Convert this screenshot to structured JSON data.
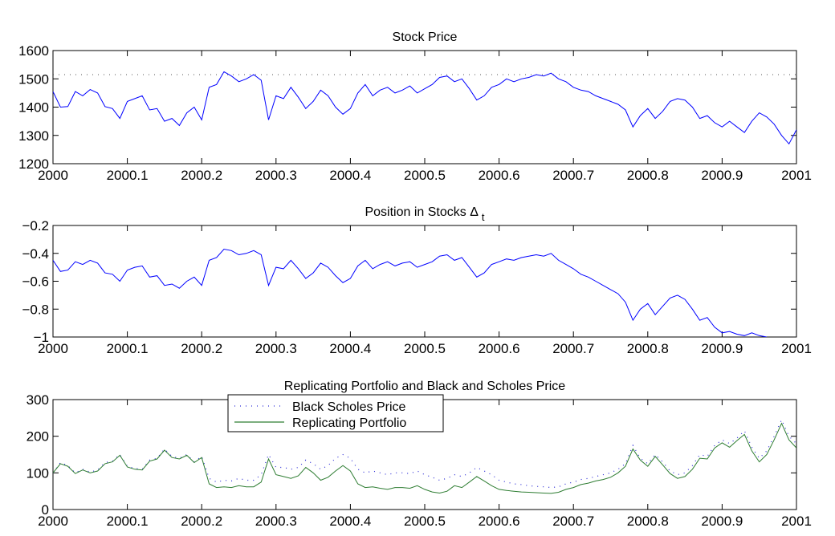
{
  "colors": {
    "blue": "#0000ff",
    "green": "#2e7d32",
    "dotted": "#2b2bd6"
  },
  "chart_data": [
    {
      "type": "line",
      "title": "Stock Price",
      "xlim": [
        2000,
        2001
      ],
      "ylim": [
        1200,
        1600
      ],
      "xticks": [
        2000,
        2000.1,
        2000.2,
        2000.3,
        2000.4,
        2000.5,
        2000.6,
        2000.7,
        2000.8,
        2000.9,
        2001
      ],
      "yticks": [
        1200,
        1300,
        1400,
        1500,
        1600
      ],
      "reference_line": {
        "y": 1515,
        "style": "dotted"
      },
      "series": [
        {
          "x": [
            2000,
            2000.01,
            2000.02,
            2000.03,
            2000.04,
            2000.05,
            2000.06,
            2000.07,
            2000.08,
            2000.09,
            2000.1,
            2000.11,
            2000.12,
            2000.13,
            2000.14,
            2000.15,
            2000.16,
            2000.17,
            2000.18,
            2000.19,
            2000.2,
            2000.21,
            2000.22,
            2000.23,
            2000.24,
            2000.25,
            2000.26,
            2000.27,
            2000.28,
            2000.29,
            2000.3,
            2000.31,
            2000.32,
            2000.33,
            2000.34,
            2000.35,
            2000.36,
            2000.37,
            2000.38,
            2000.39,
            2000.4,
            2000.41,
            2000.42,
            2000.43,
            2000.44,
            2000.45,
            2000.46,
            2000.47,
            2000.48,
            2000.49,
            2000.5,
            2000.51,
            2000.52,
            2000.53,
            2000.54,
            2000.55,
            2000.56,
            2000.57,
            2000.58,
            2000.59,
            2000.6,
            2000.61,
            2000.62,
            2000.63,
            2000.64,
            2000.65,
            2000.66,
            2000.67,
            2000.68,
            2000.69,
            2000.7,
            2000.71,
            2000.72,
            2000.73,
            2000.74,
            2000.75,
            2000.76,
            2000.77,
            2000.78,
            2000.79,
            2000.8,
            2000.81,
            2000.82,
            2000.83,
            2000.84,
            2000.85,
            2000.86,
            2000.87,
            2000.88,
            2000.89,
            2000.9,
            2000.91,
            2000.92,
            2000.93,
            2000.94,
            2000.95,
            2000.96,
            2000.97,
            2000.98,
            2000.99,
            2001
          ],
          "y": [
            1455,
            1400,
            1402,
            1455,
            1440,
            1462,
            1450,
            1402,
            1395,
            1360,
            1420,
            1430,
            1440,
            1390,
            1395,
            1350,
            1360,
            1335,
            1380,
            1400,
            1355,
            1470,
            1480,
            1525,
            1510,
            1490,
            1500,
            1515,
            1495,
            1355,
            1440,
            1430,
            1470,
            1435,
            1395,
            1420,
            1460,
            1440,
            1400,
            1375,
            1395,
            1450,
            1480,
            1440,
            1460,
            1470,
            1450,
            1460,
            1475,
            1450,
            1465,
            1480,
            1505,
            1510,
            1490,
            1500,
            1465,
            1425,
            1440,
            1470,
            1480,
            1500,
            1490,
            1500,
            1505,
            1515,
            1510,
            1520,
            1500,
            1490,
            1470,
            1460,
            1455,
            1440,
            1430,
            1420,
            1410,
            1390,
            1330,
            1370,
            1395,
            1360,
            1385,
            1420,
            1430,
            1425,
            1400,
            1360,
            1370,
            1345,
            1330,
            1350,
            1330,
            1310,
            1350,
            1380,
            1365,
            1340,
            1300,
            1270,
            1320
          ]
        }
      ]
    },
    {
      "type": "line",
      "title": "Position in Stocks Δ",
      "title_subscript": "t",
      "xlim": [
        2000,
        2001
      ],
      "ylim": [
        -1,
        -0.2
      ],
      "xticks": [
        2000,
        2000.1,
        2000.2,
        2000.3,
        2000.4,
        2000.5,
        2000.6,
        2000.7,
        2000.8,
        2000.9,
        2001
      ],
      "yticks": [
        -1,
        -0.8,
        -0.6,
        -0.4,
        -0.2
      ],
      "ytick_labels": [
        "−1",
        "−0.8",
        "−0.6",
        "−0.4",
        "−0.2"
      ],
      "series": [
        {
          "x": [
            2000,
            2000.01,
            2000.02,
            2000.03,
            2000.04,
            2000.05,
            2000.06,
            2000.07,
            2000.08,
            2000.09,
            2000.1,
            2000.11,
            2000.12,
            2000.13,
            2000.14,
            2000.15,
            2000.16,
            2000.17,
            2000.18,
            2000.19,
            2000.2,
            2000.21,
            2000.22,
            2000.23,
            2000.24,
            2000.25,
            2000.26,
            2000.27,
            2000.28,
            2000.29,
            2000.3,
            2000.31,
            2000.32,
            2000.33,
            2000.34,
            2000.35,
            2000.36,
            2000.37,
            2000.38,
            2000.39,
            2000.4,
            2000.41,
            2000.42,
            2000.43,
            2000.44,
            2000.45,
            2000.46,
            2000.47,
            2000.48,
            2000.49,
            2000.5,
            2000.51,
            2000.52,
            2000.53,
            2000.54,
            2000.55,
            2000.56,
            2000.57,
            2000.58,
            2000.59,
            2000.6,
            2000.61,
            2000.62,
            2000.63,
            2000.64,
            2000.65,
            2000.66,
            2000.67,
            2000.68,
            2000.69,
            2000.7,
            2000.71,
            2000.72,
            2000.73,
            2000.74,
            2000.75,
            2000.76,
            2000.77,
            2000.78,
            2000.79,
            2000.8,
            2000.81,
            2000.82,
            2000.83,
            2000.84,
            2000.85,
            2000.86,
            2000.87,
            2000.88,
            2000.89,
            2000.9,
            2000.91,
            2000.92,
            2000.93,
            2000.94,
            2000.95,
            2000.96
          ],
          "y": [
            -0.45,
            -0.53,
            -0.52,
            -0.46,
            -0.48,
            -0.45,
            -0.47,
            -0.54,
            -0.55,
            -0.6,
            -0.52,
            -0.5,
            -0.49,
            -0.57,
            -0.56,
            -0.63,
            -0.62,
            -0.65,
            -0.6,
            -0.57,
            -0.63,
            -0.45,
            -0.43,
            -0.37,
            -0.38,
            -0.41,
            -0.4,
            -0.38,
            -0.41,
            -0.63,
            -0.5,
            -0.51,
            -0.45,
            -0.51,
            -0.58,
            -0.54,
            -0.47,
            -0.5,
            -0.56,
            -0.61,
            -0.58,
            -0.49,
            -0.45,
            -0.51,
            -0.48,
            -0.46,
            -0.49,
            -0.47,
            -0.46,
            -0.5,
            -0.48,
            -0.46,
            -0.42,
            -0.41,
            -0.45,
            -0.43,
            -0.5,
            -0.57,
            -0.54,
            -0.48,
            -0.46,
            -0.44,
            -0.45,
            -0.43,
            -0.42,
            -0.41,
            -0.42,
            -0.4,
            -0.45,
            -0.48,
            -0.51,
            -0.55,
            -0.57,
            -0.6,
            -0.63,
            -0.66,
            -0.69,
            -0.75,
            -0.88,
            -0.8,
            -0.76,
            -0.84,
            -0.78,
            -0.72,
            -0.7,
            -0.73,
            -0.8,
            -0.88,
            -0.86,
            -0.93,
            -0.97,
            -0.96,
            -0.98,
            -0.99,
            -0.97,
            -0.99,
            -1.0
          ]
        }
      ]
    },
    {
      "type": "line",
      "title": "Replicating Portfolio and Black and Scholes Price",
      "xlim": [
        2000,
        2001
      ],
      "ylim": [
        0,
        300
      ],
      "xticks": [
        2000,
        2000.1,
        2000.2,
        2000.3,
        2000.4,
        2000.5,
        2000.6,
        2000.7,
        2000.8,
        2000.9,
        2001
      ],
      "yticks": [
        0,
        100,
        200,
        300
      ],
      "legend": {
        "placement": "top-left"
      },
      "series": [
        {
          "name": "Black Scholes Price",
          "style": "dotted",
          "x": [
            2000,
            2000.01,
            2000.02,
            2000.03,
            2000.04,
            2000.05,
            2000.06,
            2000.07,
            2000.08,
            2000.09,
            2000.1,
            2000.11,
            2000.12,
            2000.13,
            2000.14,
            2000.15,
            2000.16,
            2000.17,
            2000.18,
            2000.19,
            2000.2,
            2000.21,
            2000.22,
            2000.23,
            2000.24,
            2000.25,
            2000.26,
            2000.27,
            2000.28,
            2000.29,
            2000.3,
            2000.31,
            2000.32,
            2000.33,
            2000.34,
            2000.35,
            2000.36,
            2000.37,
            2000.38,
            2000.39,
            2000.4,
            2000.41,
            2000.42,
            2000.43,
            2000.44,
            2000.45,
            2000.46,
            2000.47,
            2000.48,
            2000.49,
            2000.5,
            2000.51,
            2000.52,
            2000.53,
            2000.54,
            2000.55,
            2000.56,
            2000.57,
            2000.58,
            2000.59,
            2000.6,
            2000.61,
            2000.62,
            2000.63,
            2000.64,
            2000.65,
            2000.66,
            2000.67,
            2000.68,
            2000.69,
            2000.7,
            2000.71,
            2000.72,
            2000.73,
            2000.74,
            2000.75,
            2000.76,
            2000.77,
            2000.78,
            2000.79,
            2000.8,
            2000.81,
            2000.82,
            2000.83,
            2000.84,
            2000.85,
            2000.86,
            2000.87,
            2000.88,
            2000.89,
            2000.9,
            2000.91,
            2000.92,
            2000.93,
            2000.94,
            2000.95,
            2000.96,
            2000.97,
            2000.98,
            2000.99,
            2001
          ],
          "y": [
            100,
            128,
            120,
            100,
            110,
            102,
            108,
            128,
            132,
            150,
            118,
            112,
            110,
            135,
            140,
            165,
            145,
            140,
            150,
            130,
            145,
            85,
            75,
            80,
            78,
            85,
            80,
            80,
            95,
            150,
            115,
            115,
            110,
            115,
            135,
            125,
            110,
            120,
            140,
            150,
            140,
            110,
            100,
            105,
            100,
            95,
            100,
            100,
            98,
            105,
            95,
            88,
            80,
            85,
            95,
            90,
            100,
            115,
            105,
            95,
            80,
            75,
            70,
            68,
            65,
            63,
            62,
            60,
            62,
            70,
            75,
            82,
            85,
            90,
            95,
            100,
            110,
            125,
            175,
            140,
            125,
            150,
            130,
            105,
            95,
            100,
            120,
            150,
            145,
            175,
            190,
            180,
            195,
            215,
            170,
            140,
            160,
            200,
            245,
            200,
            180
          ]
        },
        {
          "name": "Replicating Portfolio",
          "style": "solid",
          "x": [
            2000,
            2000.01,
            2000.02,
            2000.03,
            2000.04,
            2000.05,
            2000.06,
            2000.07,
            2000.08,
            2000.09,
            2000.1,
            2000.11,
            2000.12,
            2000.13,
            2000.14,
            2000.15,
            2000.16,
            2000.17,
            2000.18,
            2000.19,
            2000.2,
            2000.21,
            2000.22,
            2000.23,
            2000.24,
            2000.25,
            2000.26,
            2000.27,
            2000.28,
            2000.29,
            2000.3,
            2000.31,
            2000.32,
            2000.33,
            2000.34,
            2000.35,
            2000.36,
            2000.37,
            2000.38,
            2000.39,
            2000.4,
            2000.41,
            2000.42,
            2000.43,
            2000.44,
            2000.45,
            2000.46,
            2000.47,
            2000.48,
            2000.49,
            2000.5,
            2000.51,
            2000.52,
            2000.53,
            2000.54,
            2000.55,
            2000.56,
            2000.57,
            2000.58,
            2000.59,
            2000.6,
            2000.61,
            2000.62,
            2000.63,
            2000.64,
            2000.65,
            2000.66,
            2000.67,
            2000.68,
            2000.69,
            2000.7,
            2000.71,
            2000.72,
            2000.73,
            2000.74,
            2000.75,
            2000.76,
            2000.77,
            2000.78,
            2000.79,
            2000.8,
            2000.81,
            2000.82,
            2000.83,
            2000.84,
            2000.85,
            2000.86,
            2000.87,
            2000.88,
            2000.89,
            2000.9,
            2000.91,
            2000.92,
            2000.93,
            2000.94,
            2000.95,
            2000.96,
            2000.97,
            2000.98,
            2000.99,
            2001
          ],
          "y": [
            100,
            125,
            118,
            98,
            108,
            100,
            105,
            125,
            130,
            148,
            116,
            110,
            108,
            132,
            138,
            162,
            142,
            138,
            148,
            128,
            142,
            70,
            60,
            62,
            60,
            65,
            62,
            62,
            75,
            138,
            95,
            90,
            85,
            92,
            115,
            100,
            80,
            88,
            105,
            120,
            105,
            70,
            60,
            62,
            58,
            55,
            60,
            60,
            58,
            65,
            55,
            48,
            45,
            50,
            65,
            60,
            75,
            90,
            78,
            65,
            55,
            52,
            50,
            48,
            47,
            46,
            45,
            44,
            47,
            55,
            60,
            68,
            72,
            78,
            82,
            88,
            100,
            118,
            165,
            135,
            118,
            145,
            122,
            98,
            85,
            90,
            110,
            140,
            138,
            168,
            182,
            170,
            188,
            205,
            160,
            130,
            150,
            190,
            235,
            190,
            168
          ]
        }
      ]
    }
  ]
}
